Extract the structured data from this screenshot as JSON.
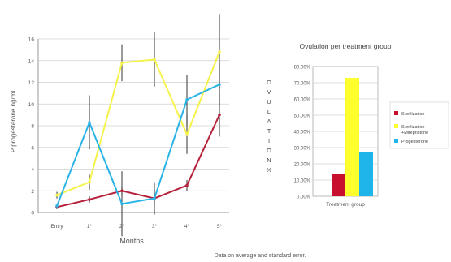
{
  "footnote": "Data on average and standard error.",
  "chart_data": [
    {
      "type": "line",
      "ylabel": "P progesterone ng/ml",
      "xlabel": "Months",
      "categories": [
        "Entry",
        "1°",
        "2°",
        "3°",
        "4°",
        "5°"
      ],
      "ylim": [
        0,
        16
      ],
      "yticks": [
        0,
        2,
        4,
        6,
        8,
        10,
        12,
        14,
        16
      ],
      "grid": true,
      "series": [
        {
          "color": "#b5203a",
          "values": [
            0.5,
            1.2,
            2.0,
            1.3,
            2.5,
            9.0
          ],
          "errors": [
            0.2,
            0.3,
            0.4,
            0.5,
            0.5,
            2.0
          ]
        },
        {
          "color": "#f5f24a",
          "values": [
            1.6,
            2.8,
            13.8,
            14.1,
            7.2,
            14.8
          ],
          "errors": [
            0.3,
            0.7,
            1.7,
            2.5,
            1.8,
            3.5
          ]
        },
        {
          "color": "#2ab3e6",
          "values": [
            0.6,
            8.3,
            0.8,
            1.3,
            10.4,
            11.8
          ],
          "errors": [
            0.2,
            2.5,
            3.0,
            1.5,
            2.3,
            2.0
          ]
        }
      ]
    },
    {
      "type": "bar",
      "title": "Ovulation per treatment group",
      "ylabel": "OVULATION %",
      "categories": [
        "Treatment group"
      ],
      "ylim": [
        0,
        80
      ],
      "yticks": [
        "0.00%",
        "10.00%",
        "20.00%",
        "30.00%",
        "40.00%",
        "50.00%",
        "60.00%",
        "70.00%",
        "80.00%"
      ],
      "grid": true,
      "legend_position": "right",
      "series": [
        {
          "name": "Sterilization",
          "color": "#c8102e",
          "values": [
            14
          ]
        },
        {
          "name": "Sterilization +Mifepristone",
          "color": "#ffff2e",
          "values": [
            73
          ]
        },
        {
          "name": "Progesterone",
          "color": "#1fb4ea",
          "values": [
            27
          ]
        }
      ]
    }
  ]
}
